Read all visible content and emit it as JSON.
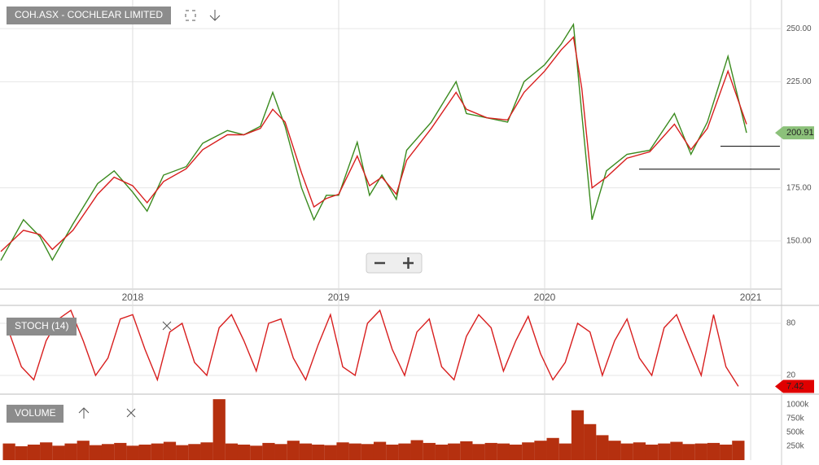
{
  "chart_data": [
    {
      "type": "line",
      "title": "COH.ASX - COCHLEAR LIMITED",
      "x": [
        2017.36,
        2017.47,
        2017.55,
        2017.61,
        2017.71,
        2017.83,
        2017.91,
        2018.0,
        2018.07,
        2018.15,
        2018.26,
        2018.34,
        2018.46,
        2018.54,
        2018.62,
        2018.68,
        2018.74,
        2018.82,
        2018.88,
        2018.94,
        2019.0,
        2019.09,
        2019.15,
        2019.21,
        2019.28,
        2019.33,
        2019.45,
        2019.57,
        2019.62,
        2019.72,
        2019.82,
        2019.9,
        2020.0,
        2020.08,
        2020.14,
        2020.18,
        2020.23,
        2020.3,
        2020.4,
        2020.51,
        2020.63,
        2020.71,
        2020.79,
        2020.89,
        2020.98
      ],
      "series": [
        {
          "color": "#3a8a1e",
          "values": [
            140.8,
            160,
            152,
            141,
            158,
            177,
            183,
            173,
            164,
            181,
            185,
            196,
            202,
            200,
            204,
            220,
            204,
            175,
            160,
            171.5,
            171.5,
            196.5,
            171.5,
            181,
            169.6,
            192.7,
            206,
            225,
            210,
            208,
            206,
            225,
            233,
            242.7,
            252,
            210,
            160,
            183,
            190.8,
            192.7,
            210,
            190.8,
            206,
            237,
            200.91
          ]
        },
        {
          "color": "#d81e1e",
          "values": [
            145,
            155,
            153,
            146,
            155,
            172,
            180,
            176,
            168,
            178,
            184,
            193,
            200,
            200,
            203,
            212,
            206,
            182,
            166,
            170,
            172,
            190,
            176,
            180,
            172,
            188,
            203,
            220,
            212,
            208,
            207,
            220,
            230,
            240,
            246,
            222,
            175,
            180,
            189,
            192,
            205,
            193,
            203,
            230,
            205
          ]
        }
      ],
      "xlim": [
        2017.356,
        2021.15
      ],
      "xticks": [
        2018,
        2019,
        2020,
        2021
      ],
      "ylim": [
        127.3,
        263.5
      ],
      "yticks": [
        {
          "value": 150,
          "label": "150.00"
        },
        {
          "value": 175,
          "label": "175.00"
        },
        {
          "value": 225,
          "label": "225.00"
        },
        {
          "value": 250,
          "label": "250.00"
        }
      ],
      "levels": [
        194.6,
        183.8
      ],
      "grid": true
    },
    {
      "type": "line",
      "title": "STOCH (14)",
      "series": [
        {
          "color": "#d81e1e",
          "values": [
            70,
            30,
            15,
            60,
            85,
            95,
            60,
            20,
            40,
            85,
            90,
            50,
            15,
            70,
            80,
            35,
            20,
            75,
            90,
            60,
            25,
            80,
            85,
            40,
            15,
            55,
            90,
            30,
            20,
            80,
            95,
            50,
            20,
            70,
            85,
            30,
            15,
            65,
            90,
            75,
            25,
            60,
            88,
            45,
            15,
            35,
            80,
            70,
            20,
            60,
            85,
            40,
            20,
            75,
            90,
            55,
            20,
            90,
            30,
            7.42
          ]
        }
      ],
      "xlim": [
        2017.356,
        2021.15
      ],
      "ylim": [
        -0.6,
        98.8
      ],
      "yticks": [
        20,
        80
      ],
      "grid": true
    },
    {
      "type": "bar",
      "title": "VOLUME",
      "color": "#b5300f",
      "values": [
        300000,
        250000,
        280000,
        320000,
        260000,
        300000,
        350000,
        270000,
        290000,
        310000,
        260000,
        280000,
        300000,
        330000,
        270000,
        290000,
        320000,
        1100000,
        300000,
        280000,
        260000,
        310000,
        290000,
        350000,
        300000,
        280000,
        270000,
        320000,
        300000,
        290000,
        330000,
        280000,
        300000,
        360000,
        310000,
        280000,
        300000,
        340000,
        290000,
        310000,
        300000,
        280000,
        320000,
        350000,
        400000,
        300000,
        900000,
        650000,
        450000,
        350000,
        300000,
        320000,
        280000,
        300000,
        330000,
        290000,
        300000,
        310000,
        280000,
        350000
      ],
      "xlim": [
        2017.356,
        2021.15
      ],
      "ylim": [
        0,
        1176000
      ],
      "yticks": [
        {
          "value": 250000,
          "label": "250k"
        },
        {
          "value": 500000,
          "label": "500k"
        },
        {
          "value": 750000,
          "label": "750k"
        },
        {
          "value": 1000000,
          "label": "1000k"
        }
      ]
    }
  ]
}
